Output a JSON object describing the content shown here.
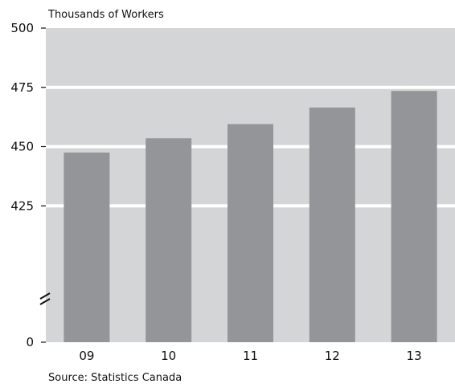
{
  "chart_data": {
    "type": "bar",
    "ylabel": "Thousands of Workers",
    "categories": [
      "09",
      "10",
      "11",
      "12",
      "13"
    ],
    "values": [
      447.5,
      453.5,
      459.5,
      466.5,
      473.5
    ],
    "y_ticks": [
      "500",
      "475",
      "450",
      "425",
      "0"
    ],
    "ylim": [
      400,
      500
    ],
    "axis_break": true,
    "grid": true,
    "legend": "none",
    "source": "Source: Statistics Canada",
    "colors": {
      "plot_background": "#d4d5d6",
      "bar": "#939598",
      "gridline": "#ffffff"
    }
  }
}
